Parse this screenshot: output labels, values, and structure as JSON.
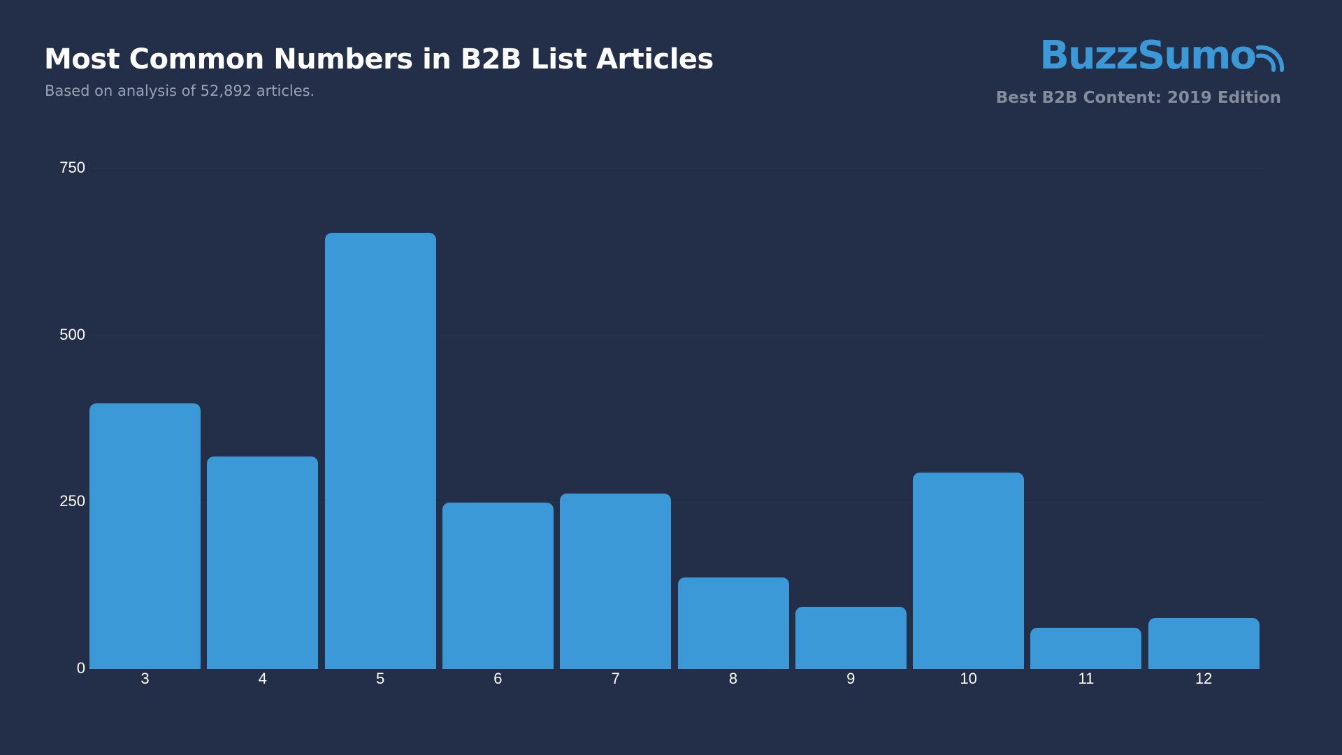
{
  "header": {
    "title": "Most Common Numbers in B2B List Articles",
    "subtitle": "Based on analysis of 52,892 articles.",
    "brand": "BuzzSumo",
    "edition": "Best B2B Content: 2019 Edition"
  },
  "colors": {
    "background": "#232f48",
    "bar": "#3a99d6",
    "brand": "#3a99d6",
    "edition_text": "#858d9c",
    "subtitle_text": "#9aa3b3"
  },
  "chart_data": {
    "type": "bar",
    "title": "Most Common Numbers in B2B List Articles",
    "subtitle": "Based on analysis of 52,892 articles.",
    "xlabel": "",
    "ylabel": "",
    "categories": [
      "3",
      "4",
      "5",
      "6",
      "7",
      "8",
      "9",
      "10",
      "11",
      "12"
    ],
    "values": [
      398,
      318,
      654,
      249,
      263,
      137,
      93,
      294,
      62,
      76
    ],
    "ylim": [
      0,
      750
    ],
    "yticks": [
      "0",
      "250",
      "500",
      "750"
    ],
    "grid": true,
    "legend": null
  }
}
